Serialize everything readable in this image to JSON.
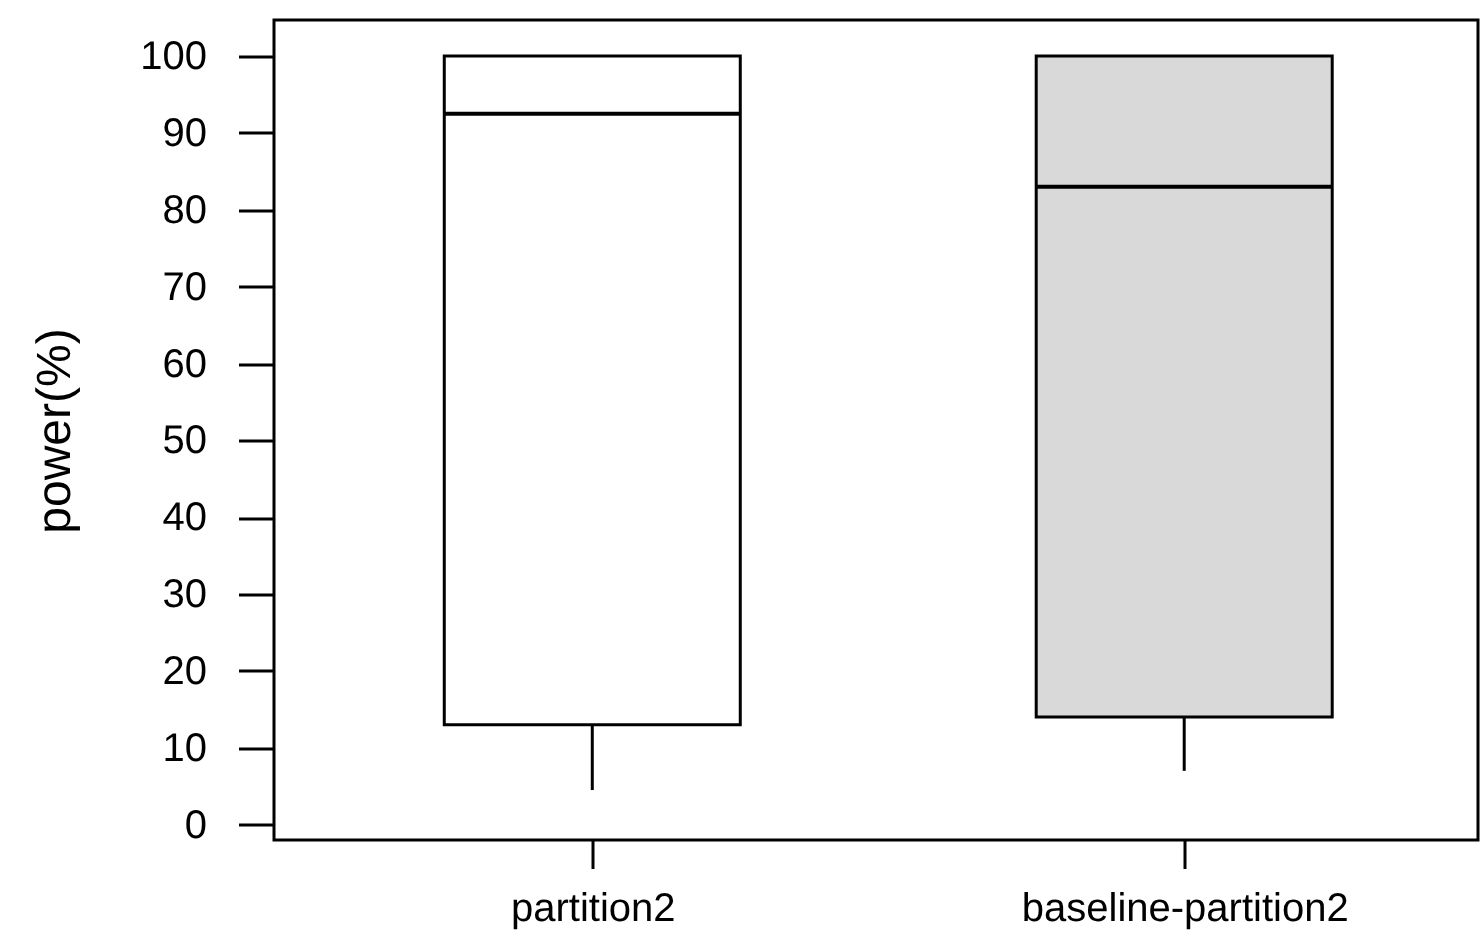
{
  "chart_data": {
    "type": "box",
    "ylabel": "power(%)",
    "categories": [
      "partition2",
      "baseline-partition2"
    ],
    "boxes": [
      {
        "low": 4.5,
        "q1": 13,
        "median": 92.5,
        "q3": 100,
        "high": 100
      },
      {
        "low": 7,
        "q1": 14,
        "median": 83,
        "q3": 100,
        "high": 100
      }
    ],
    "colors": [
      "#ffffff",
      "#d9d9d9"
    ],
    "ylim": [
      -2,
      104.7
    ],
    "yticks": [
      0,
      10,
      20,
      30,
      40,
      50,
      60,
      70,
      80,
      90,
      100
    ]
  }
}
